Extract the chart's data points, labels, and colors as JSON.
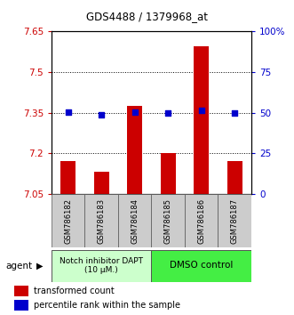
{
  "title": "GDS4488 / 1379968_at",
  "samples": [
    "GSM786182",
    "GSM786183",
    "GSM786184",
    "GSM786185",
    "GSM786186",
    "GSM786187"
  ],
  "bar_values": [
    7.17,
    7.13,
    7.375,
    7.2,
    7.595,
    7.17
  ],
  "bar_bottom": 7.05,
  "dot_values": [
    7.352,
    7.342,
    7.352,
    7.35,
    7.357,
    7.348
  ],
  "ylim": [
    7.05,
    7.65
  ],
  "y_ticks": [
    7.05,
    7.2,
    7.35,
    7.5,
    7.65
  ],
  "y_tick_labels": [
    "7.05",
    "7.2",
    "7.35",
    "7.5",
    "7.65"
  ],
  "right_yticks_pct": [
    0,
    25,
    50,
    75,
    100
  ],
  "right_ytick_labels": [
    "0",
    "25",
    "50",
    "75",
    "100%"
  ],
  "bar_color": "#cc0000",
  "dot_color": "#0000cc",
  "group1_label": "Notch inhibitor DAPT\n(10 μM.)",
  "group2_label": "DMSO control",
  "group1_color": "#ccffcc",
  "group2_color": "#44ee44",
  "legend_bar_label": "transformed count",
  "legend_dot_label": "percentile rank within the sample",
  "agent_label": "agent",
  "hline_values": [
    7.2,
    7.35,
    7.5
  ],
  "sample_bg_color": "#cccccc",
  "sample_border_color": "#555555"
}
